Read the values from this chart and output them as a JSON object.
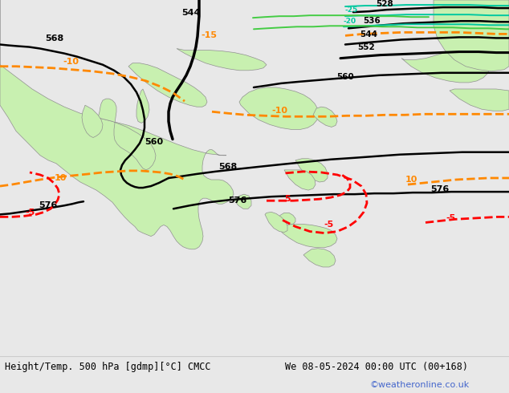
{
  "title_left": "Height/Temp. 500 hPa [gdmp][°C] CMCC",
  "title_right": "We 08-05-2024 00:00 UTC (00+168)",
  "credit": "©weatheronline.co.uk",
  "sea_color": "#d8d8d8",
  "land_color": "#c8f0b0",
  "land_edge_color": "#909090",
  "bottom_bar_color": "#e8e8e8",
  "credit_color": "#4466cc",
  "figsize": [
    6.34,
    4.9
  ],
  "dpi": 100
}
